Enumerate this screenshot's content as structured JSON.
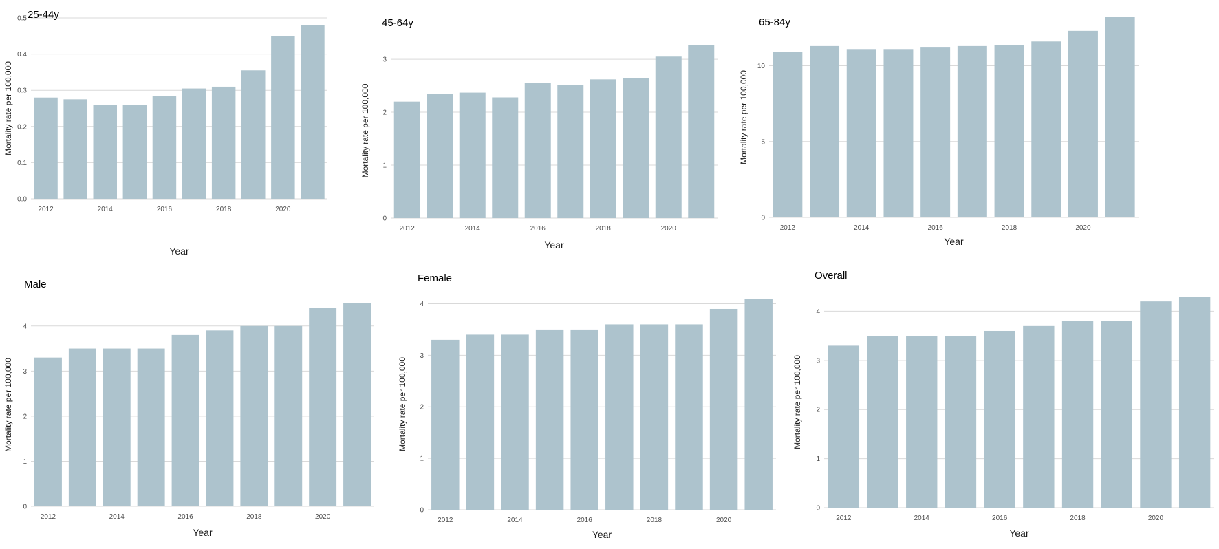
{
  "chart_data": [
    {
      "type": "bar",
      "title": "25-44y",
      "xlabel": "Year",
      "ylabel": "Mortality rate per 100,000",
      "categories": [
        2012,
        2013,
        2014,
        2015,
        2016,
        2017,
        2018,
        2019,
        2020,
        2021
      ],
      "values": [
        0.28,
        0.275,
        0.26,
        0.26,
        0.285,
        0.305,
        0.31,
        0.355,
        0.45,
        0.48
      ],
      "ylim": [
        0,
        0.5
      ],
      "yticks": [
        "0.0",
        "0.1",
        "0.2",
        "0.3",
        "0.4",
        "0.5"
      ],
      "ytick_values": [
        0,
        0.1,
        0.2,
        0.3,
        0.4,
        0.5
      ],
      "xticks": [
        "2012",
        "2014",
        "2016",
        "2018",
        "2020"
      ],
      "xtick_values": [
        2012,
        2014,
        2016,
        2018,
        2020
      ],
      "grid": true,
      "color": "#adc3cd"
    },
    {
      "type": "bar",
      "title": "45-64y",
      "xlabel": "Year",
      "ylabel": "Mortality rate per 100,000",
      "categories": [
        2012,
        2013,
        2014,
        2015,
        2016,
        2017,
        2018,
        2019,
        2020,
        2021
      ],
      "values": [
        2.2,
        2.35,
        2.37,
        2.28,
        2.55,
        2.52,
        2.62,
        2.65,
        3.05,
        3.27
      ],
      "ylim": [
        0,
        3.3
      ],
      "yticks": [
        "0",
        "1",
        "2",
        "3"
      ],
      "ytick_values": [
        0,
        1,
        2,
        3
      ],
      "xticks": [
        "2012",
        "2014",
        "2016",
        "2018",
        "2020"
      ],
      "xtick_values": [
        2012,
        2014,
        2016,
        2018,
        2020
      ],
      "grid": true,
      "color": "#adc3cd"
    },
    {
      "type": "bar",
      "title": "65-84y",
      "xlabel": "Year",
      "ylabel": "Mortality rate per 100,000",
      "categories": [
        2012,
        2013,
        2014,
        2015,
        2016,
        2017,
        2018,
        2019,
        2020,
        2021
      ],
      "values": [
        10.9,
        11.3,
        11.1,
        11.1,
        11.2,
        11.3,
        11.35,
        11.6,
        12.3,
        13.2
      ],
      "ylim": [
        0,
        13.2
      ],
      "yticks": [
        "0",
        "5",
        "10"
      ],
      "ytick_values": [
        0,
        5,
        10
      ],
      "xticks": [
        "2012",
        "2014",
        "2016",
        "2018",
        "2020"
      ],
      "xtick_values": [
        2012,
        2014,
        2016,
        2018,
        2020
      ],
      "grid": true,
      "color": "#adc3cd"
    },
    {
      "type": "bar",
      "title": "Male",
      "xlabel": "Year",
      "ylabel": "Mortality rate per 100,000",
      "categories": [
        2012,
        2013,
        2014,
        2015,
        2016,
        2017,
        2018,
        2019,
        2020,
        2021
      ],
      "values": [
        3.3,
        3.5,
        3.5,
        3.5,
        3.8,
        3.9,
        4.0,
        4.0,
        4.4,
        4.5
      ],
      "ylim": [
        0,
        4.5
      ],
      "yticks": [
        "0",
        "1",
        "2",
        "3",
        "4"
      ],
      "ytick_values": [
        0,
        1,
        2,
        3,
        4
      ],
      "xticks": [
        "2012",
        "2014",
        "2016",
        "2018",
        "2020"
      ],
      "xtick_values": [
        2012,
        2014,
        2016,
        2018,
        2020
      ],
      "grid": true,
      "color": "#adc3cd"
    },
    {
      "type": "bar",
      "title": "Female",
      "xlabel": "Year",
      "ylabel": "Mortality rate per 100,000",
      "categories": [
        2012,
        2013,
        2014,
        2015,
        2016,
        2017,
        2018,
        2019,
        2020,
        2021
      ],
      "values": [
        3.3,
        3.4,
        3.4,
        3.5,
        3.5,
        3.6,
        3.6,
        3.6,
        3.9,
        4.1
      ],
      "ylim": [
        0,
        4.1
      ],
      "yticks": [
        "0",
        "1",
        "2",
        "3",
        "4"
      ],
      "ytick_values": [
        0,
        1,
        2,
        3,
        4
      ],
      "xticks": [
        "2012",
        "2014",
        "2016",
        "2018",
        "2020"
      ],
      "xtick_values": [
        2012,
        2014,
        2016,
        2018,
        2020
      ],
      "grid": true,
      "color": "#adc3cd"
    },
    {
      "type": "bar",
      "title": "Overall",
      "xlabel": "Year",
      "ylabel": "Mortality rate per 100,000",
      "categories": [
        2012,
        2013,
        2014,
        2015,
        2016,
        2017,
        2018,
        2019,
        2020,
        2021
      ],
      "values": [
        3.3,
        3.5,
        3.5,
        3.5,
        3.6,
        3.7,
        3.8,
        3.8,
        4.2,
        4.3
      ],
      "ylim": [
        0,
        4.3
      ],
      "yticks": [
        "0",
        "1",
        "2",
        "3",
        "4"
      ],
      "ytick_values": [
        0,
        1,
        2,
        3,
        4
      ],
      "xticks": [
        "2012",
        "2014",
        "2016",
        "2018",
        "2020"
      ],
      "xtick_values": [
        2012,
        2014,
        2016,
        2018,
        2020
      ],
      "grid": true,
      "color": "#adc3cd"
    }
  ]
}
